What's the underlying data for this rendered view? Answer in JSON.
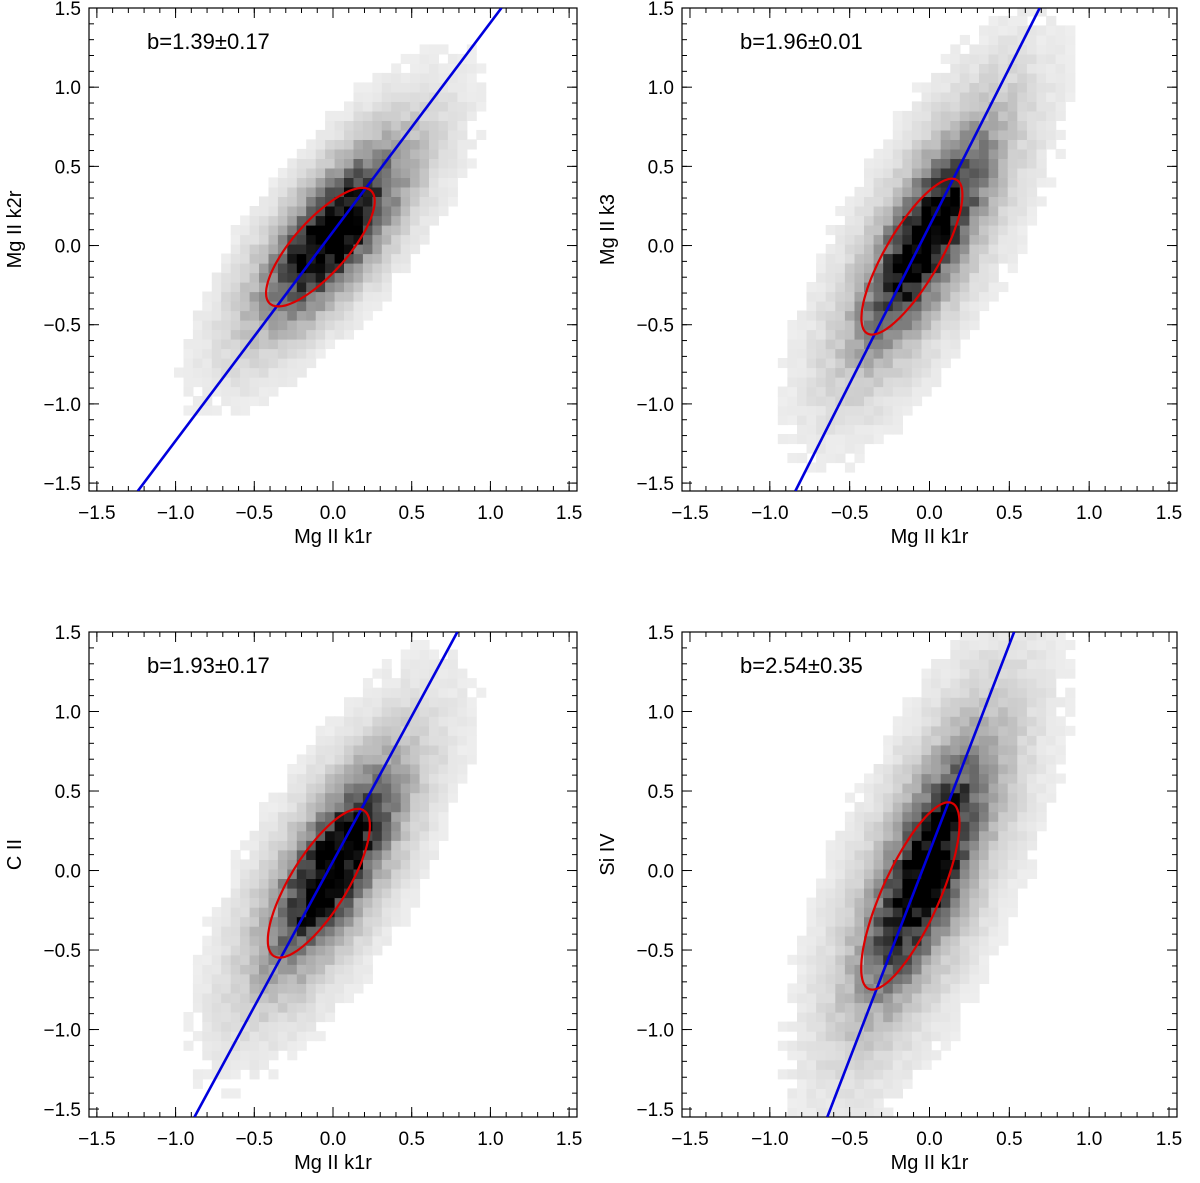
{
  "figure": {
    "name": "four-panel-density-figure"
  },
  "chart_data": [
    {
      "type": "heatmap",
      "title": "",
      "xlabel": "Mg II k1r",
      "ylabel": "Mg II k2r",
      "xlim": [
        -1.55,
        1.55
      ],
      "ylim": [
        -1.55,
        1.5
      ],
      "xticks": [
        -1.5,
        -1.0,
        -0.5,
        0.0,
        0.5,
        1.0,
        1.5
      ],
      "yticks": [
        -1.5,
        -1.0,
        -0.5,
        0.0,
        0.5,
        1.0,
        1.5
      ],
      "tick_labels_x": [
        "−1.5",
        "−1.0",
        "−0.5",
        "0.0",
        "0.5",
        "1.0",
        "1.5"
      ],
      "tick_labels_y": [
        "−1.5",
        "−1.0",
        "−0.5",
        "0.0",
        "0.5",
        "1.0",
        "1.5"
      ],
      "annotation": "b=1.39±0.17",
      "slope": 1.39,
      "fit_line": {
        "x": [
          -1.24,
          1.07
        ],
        "y": [
          -1.55,
          1.5
        ],
        "color": "#0000dd"
      },
      "ellipse": {
        "cx": -0.08,
        "cy": -0.01,
        "semi_major": 0.48,
        "semi_minor": 0.17,
        "angle_deg": 48,
        "color": "#dd0000"
      },
      "density": {
        "center": [
          0.0,
          0.08
        ],
        "sigma_major": 0.36,
        "sigma_minor": 0.14,
        "angle_deg": 52,
        "tail_sigma": 0.55
      }
    },
    {
      "type": "heatmap",
      "title": "",
      "xlabel": "Mg II k1r",
      "ylabel": "Mg II k3",
      "xlim": [
        -1.55,
        1.55
      ],
      "ylim": [
        -1.55,
        1.5
      ],
      "xticks": [
        -1.5,
        -1.0,
        -0.5,
        0.0,
        0.5,
        1.0,
        1.5
      ],
      "yticks": [
        -1.5,
        -1.0,
        -0.5,
        0.0,
        0.5,
        1.0,
        1.5
      ],
      "tick_labels_x": [
        "−1.5",
        "−1.0",
        "−0.5",
        "0.0",
        "0.5",
        "1.0",
        "1.5"
      ],
      "tick_labels_y": [
        "−1.5",
        "−1.0",
        "−0.5",
        "0.0",
        "0.5",
        "1.0",
        "1.5"
      ],
      "annotation": "b=1.96±0.01",
      "slope": 1.96,
      "fit_line": {
        "x": [
          -0.84,
          0.69
        ],
        "y": [
          -1.55,
          1.5
        ],
        "color": "#0000dd"
      },
      "ellipse": {
        "cx": -0.11,
        "cy": -0.07,
        "semi_major": 0.56,
        "semi_minor": 0.17,
        "angle_deg": 60,
        "color": "#dd0000"
      },
      "density": {
        "center": [
          -0.02,
          0.05
        ],
        "sigma_major": 0.42,
        "sigma_minor": 0.13,
        "angle_deg": 62,
        "tail_sigma": 0.6
      }
    },
    {
      "type": "heatmap",
      "title": "",
      "xlabel": "Mg II k1r",
      "ylabel": "C II",
      "xlim": [
        -1.55,
        1.55
      ],
      "ylim": [
        -1.55,
        1.5
      ],
      "xticks": [
        -1.5,
        -1.0,
        -0.5,
        0.0,
        0.5,
        1.0,
        1.5
      ],
      "yticks": [
        -1.5,
        -1.0,
        -0.5,
        0.0,
        0.5,
        1.0,
        1.5
      ],
      "tick_labels_x": [
        "−1.5",
        "−1.0",
        "−0.5",
        "0.0",
        "0.5",
        "1.0",
        "1.5"
      ],
      "tick_labels_y": [
        "−1.5",
        "−1.0",
        "−0.5",
        "0.0",
        "0.5",
        "1.0",
        "1.5"
      ],
      "annotation": "b=1.93±0.17",
      "slope": 1.93,
      "fit_line": {
        "x": [
          -0.88,
          0.79
        ],
        "y": [
          -1.55,
          1.5
        ],
        "color": "#0000dd"
      },
      "ellipse": {
        "cx": -0.09,
        "cy": -0.08,
        "semi_major": 0.54,
        "semi_minor": 0.18,
        "angle_deg": 58,
        "color": "#dd0000"
      },
      "density": {
        "center": [
          0.0,
          0.02
        ],
        "sigma_major": 0.4,
        "sigma_minor": 0.14,
        "angle_deg": 60,
        "tail_sigma": 0.6
      }
    },
    {
      "type": "heatmap",
      "title": "",
      "xlabel": "Mg II k1r",
      "ylabel": "Si IV",
      "xlim": [
        -1.55,
        1.55
      ],
      "ylim": [
        -1.55,
        1.5
      ],
      "xticks": [
        -1.5,
        -1.0,
        -0.5,
        0.0,
        0.5,
        1.0,
        1.5
      ],
      "yticks": [
        -1.5,
        -1.0,
        -0.5,
        0.0,
        0.5,
        1.0,
        1.5
      ],
      "tick_labels_x": [
        "−1.5",
        "−1.0",
        "−0.5",
        "0.0",
        "0.5",
        "1.0",
        "1.5"
      ],
      "tick_labels_y": [
        "−1.5",
        "−1.0",
        "−0.5",
        "0.0",
        "0.5",
        "1.0",
        "1.5"
      ],
      "annotation": "b=2.54±0.35",
      "slope": 2.54,
      "fit_line": {
        "x": [
          -0.64,
          0.53
        ],
        "y": [
          -1.55,
          1.5
        ],
        "color": "#0000dd"
      },
      "ellipse": {
        "cx": -0.12,
        "cy": -0.16,
        "semi_major": 0.64,
        "semi_minor": 0.18,
        "angle_deg": 66,
        "color": "#dd0000"
      },
      "density": {
        "center": [
          -0.02,
          0.0
        ],
        "sigma_major": 0.48,
        "sigma_minor": 0.14,
        "angle_deg": 68,
        "tail_sigma": 0.65
      }
    }
  ]
}
